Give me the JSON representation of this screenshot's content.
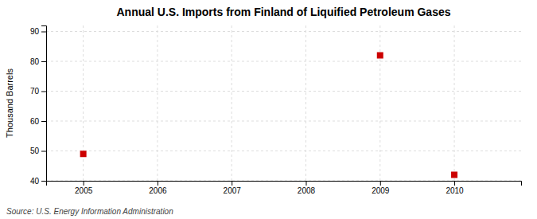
{
  "chart_data": {
    "type": "scatter",
    "title": "Annual U.S. Imports from Finland of Liquified Petroleum Gases",
    "y_label": "Thousand Barrels",
    "annotations": [
      "Source: U.S. Energy Information Administration"
    ],
    "x": [
      2005,
      2009,
      2010
    ],
    "values": [
      49,
      82,
      42
    ],
    "color": "#cc0000",
    "marker": "square",
    "xlim": [
      2004.5,
      2010.9
    ],
    "ylim": [
      40,
      92
    ],
    "xticks": [
      2005,
      2006,
      2007,
      2008,
      2009,
      2010
    ],
    "yticks": [
      40,
      50,
      60,
      70,
      80,
      90
    ],
    "grid": true
  }
}
